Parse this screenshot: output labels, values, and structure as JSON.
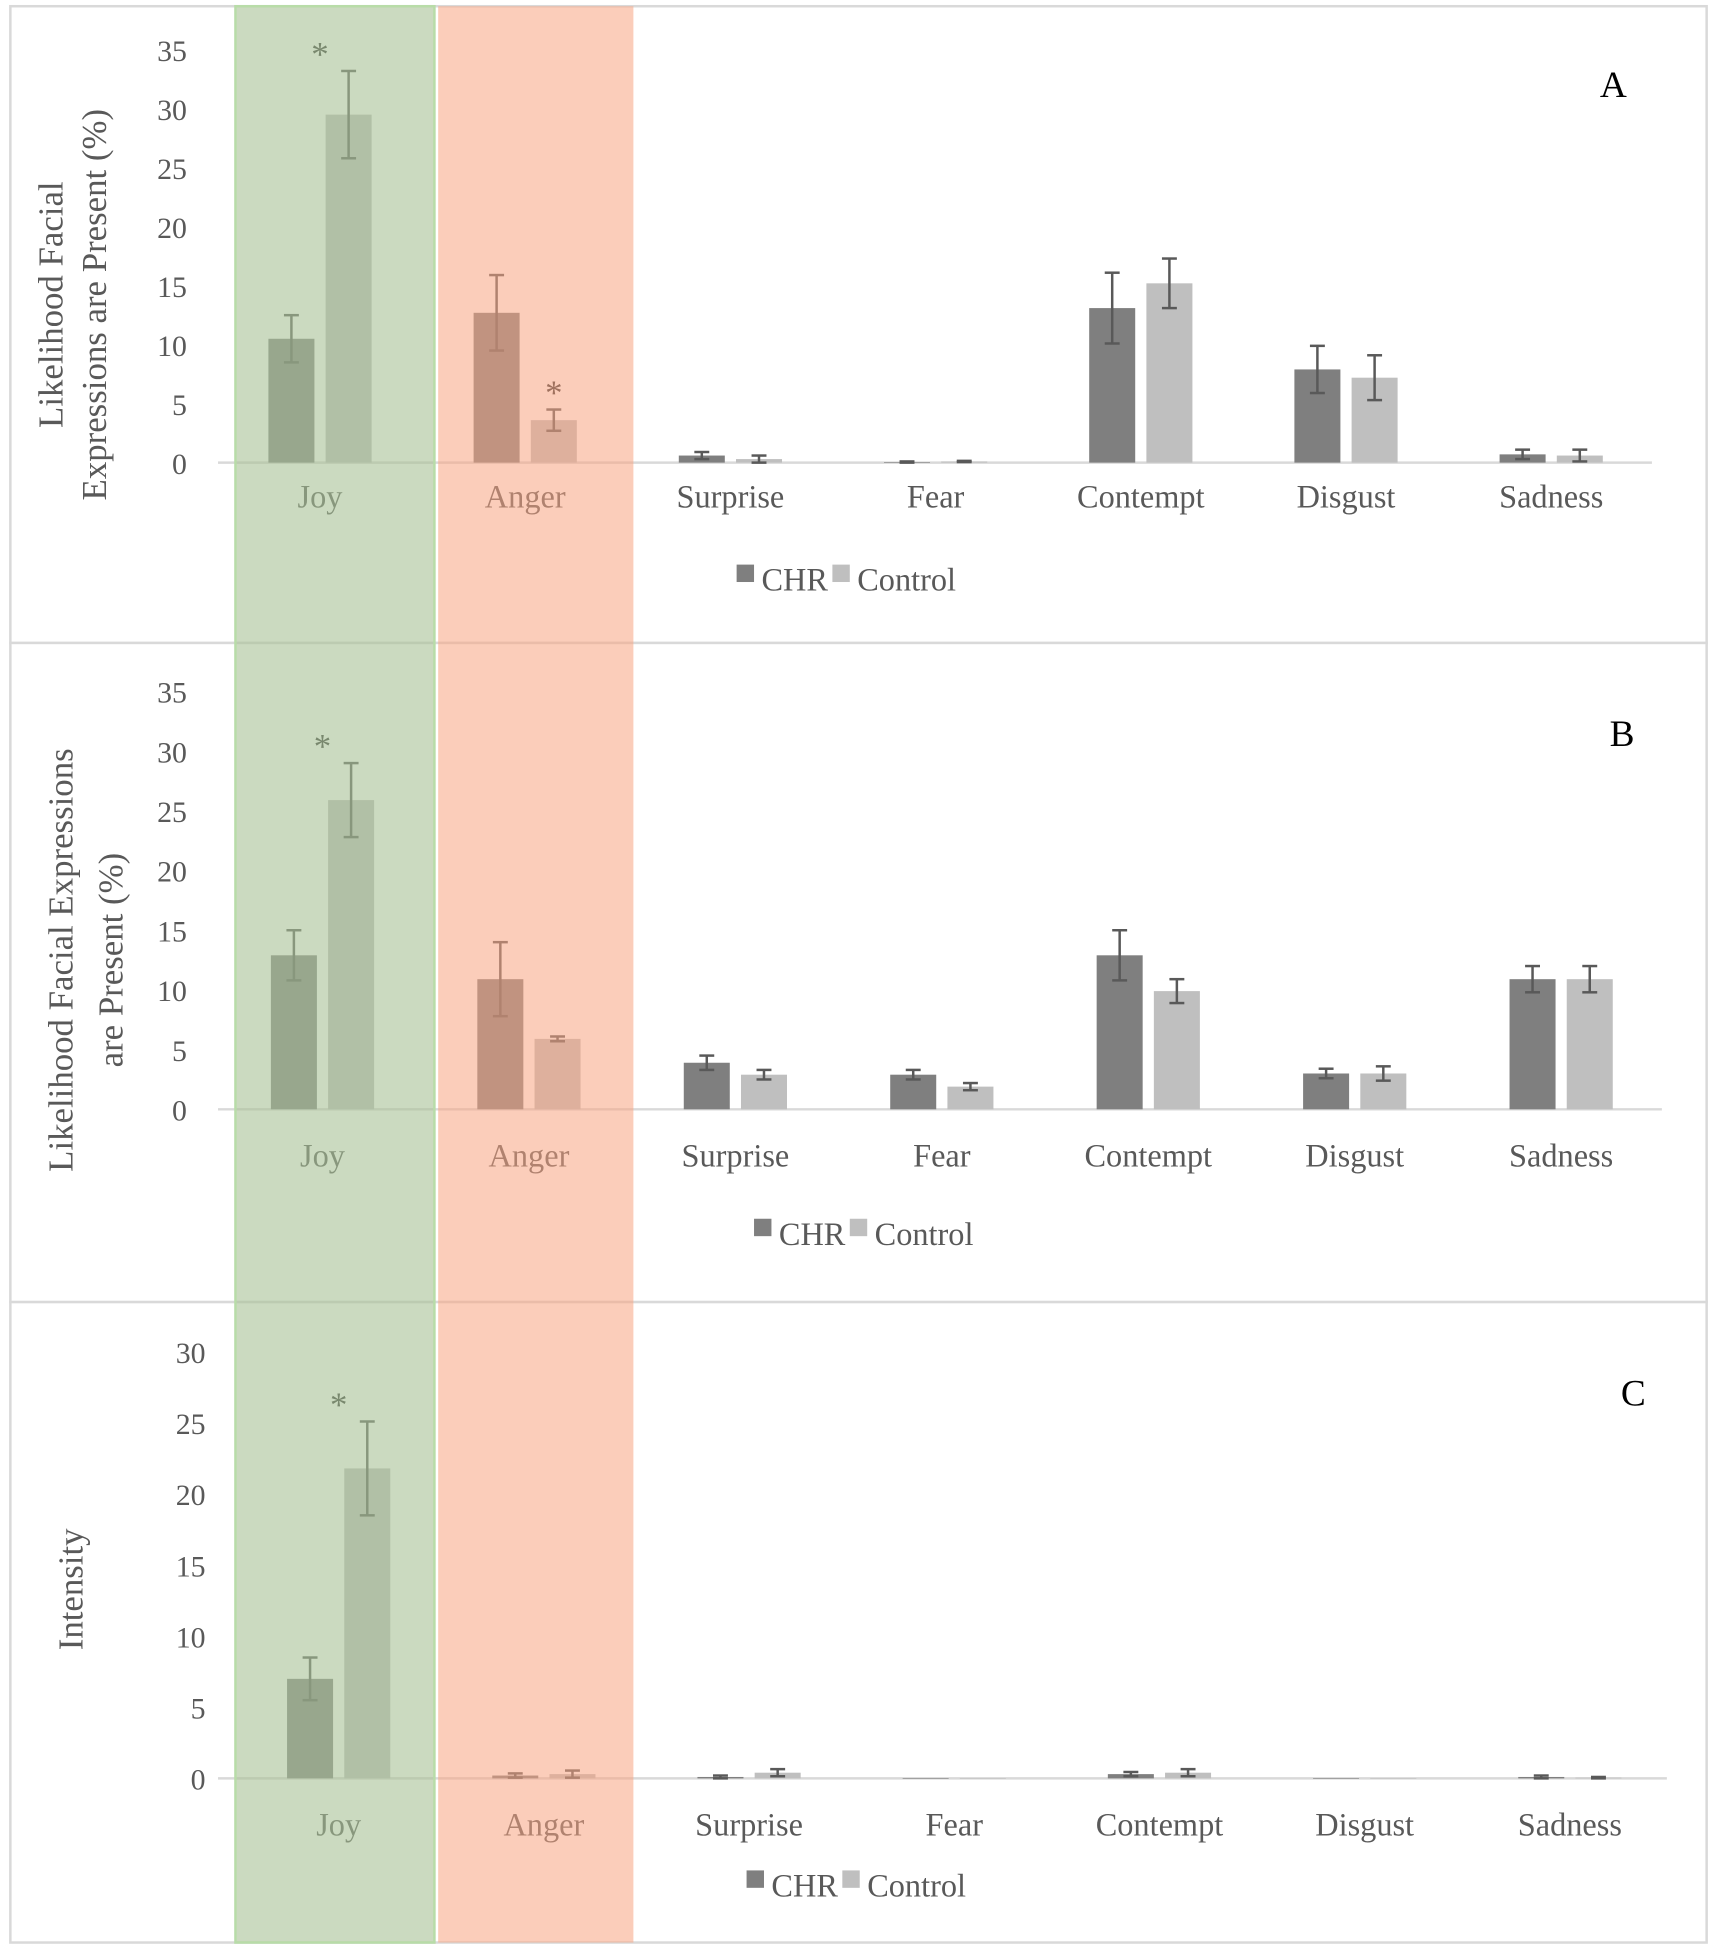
{
  "chart_data": [
    {
      "type": "bar",
      "panel": "A",
      "ylabel": [
        "Likelihood Facial",
        "Expressions are Present (%)"
      ],
      "ylim": [
        0,
        35
      ],
      "yticks": [
        "0",
        "5",
        "10",
        "15",
        "20",
        "25",
        "30",
        "35"
      ],
      "categories": [
        "Joy",
        "Anger",
        "Surprise",
        "Fear",
        "Contempt",
        "Disgust",
        "Sadness"
      ],
      "series": [
        {
          "name": "CHR",
          "color": "#7f7f7f",
          "values": [
            10.5,
            12.7,
            0.6,
            0.05,
            13.1,
            7.9,
            0.7
          ],
          "errors": [
            2.0,
            3.2,
            0.3,
            0.05,
            3.0,
            2.0,
            0.4
          ]
        },
        {
          "name": "Control",
          "color": "#bfbfbf",
          "values": [
            29.5,
            3.6,
            0.3,
            0.1,
            15.2,
            7.2,
            0.6
          ],
          "errors": [
            3.7,
            0.9,
            0.3,
            0.05,
            2.1,
            1.9,
            0.5
          ]
        }
      ],
      "significance": [
        {
          "category": "Joy",
          "series": "Control",
          "mark": "*"
        },
        {
          "category": "Anger",
          "series": "Control",
          "mark": "*"
        }
      ],
      "legend": "bottom"
    },
    {
      "type": "bar",
      "panel": "B",
      "ylabel": [
        "Likelihood Facial Expressions",
        "are Present (%)"
      ],
      "ylim": [
        0,
        35
      ],
      "yticks": [
        "0",
        "5",
        "10",
        "15",
        "20",
        "25",
        "30",
        "35"
      ],
      "categories": [
        "Joy",
        "Anger",
        "Surprise",
        "Fear",
        "Contempt",
        "Disgust",
        "Sadness"
      ],
      "series": [
        {
          "name": "CHR",
          "color": "#7f7f7f",
          "values": [
            12.9,
            10.9,
            3.9,
            2.9,
            12.9,
            3.0,
            10.9
          ],
          "errors": [
            2.1,
            3.1,
            0.6,
            0.4,
            2.1,
            0.4,
            1.1
          ]
        },
        {
          "name": "Control",
          "color": "#bfbfbf",
          "values": [
            25.9,
            5.9,
            2.9,
            1.9,
            9.9,
            3.0,
            10.9
          ],
          "errors": [
            3.1,
            0.2,
            0.4,
            0.3,
            1.0,
            0.6,
            1.1
          ]
        }
      ],
      "significance": [
        {
          "category": "Joy",
          "series": "Control",
          "mark": "*"
        }
      ],
      "legend": "bottom"
    },
    {
      "type": "bar",
      "panel": "C",
      "ylabel": [
        "Intensity"
      ],
      "ylim": [
        0,
        30
      ],
      "yticks": [
        "0",
        "5",
        "10",
        "15",
        "20",
        "25",
        "30"
      ],
      "categories": [
        "Joy",
        "Anger",
        "Surprise",
        "Fear",
        "Contempt",
        "Disgust",
        "Sadness"
      ],
      "series": [
        {
          "name": "CHR",
          "color": "#7f7f7f",
          "values": [
            7.0,
            0.2,
            0.1,
            0.0,
            0.3,
            0.0,
            0.1
          ],
          "errors": [
            1.5,
            0.15,
            0.1,
            0.0,
            0.15,
            0.0,
            0.1
          ]
        },
        {
          "name": "Control",
          "color": "#bfbfbf",
          "values": [
            21.8,
            0.3,
            0.4,
            0.0,
            0.4,
            0.0,
            0.05
          ],
          "errors": [
            3.3,
            0.25,
            0.25,
            0.0,
            0.25,
            0.0,
            0.05
          ]
        }
      ],
      "significance": [
        {
          "category": "Joy",
          "series": "Control",
          "mark": "*"
        }
      ],
      "legend": "bottom"
    }
  ],
  "highlights": {
    "joy_color": "#a9c296",
    "anger_color": "#f7a482"
  }
}
